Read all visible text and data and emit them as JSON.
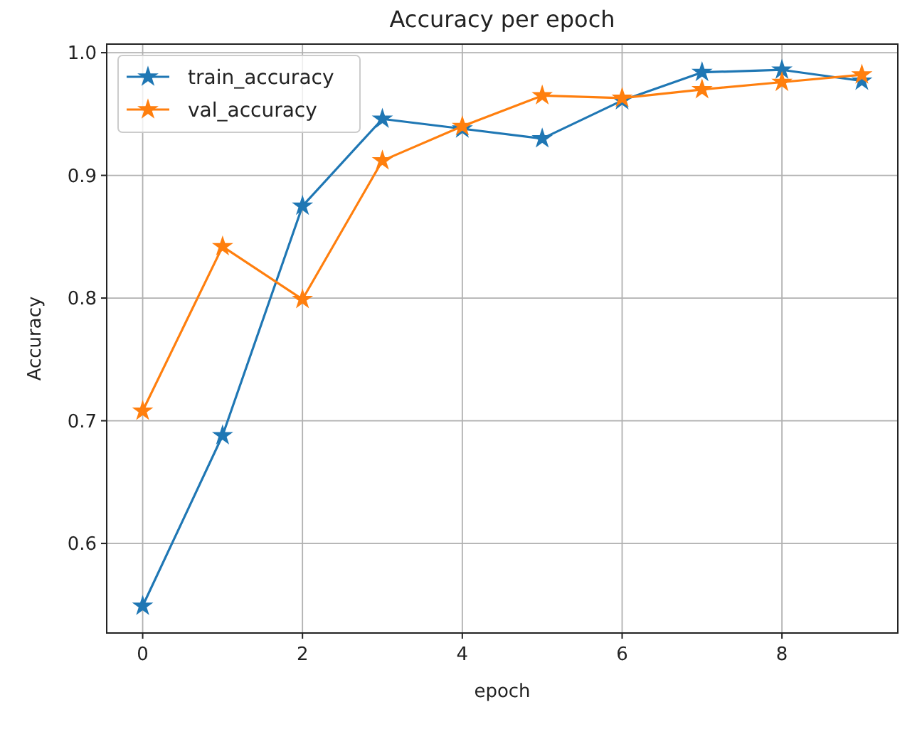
{
  "chart_data": {
    "type": "line",
    "title": "Accuracy per epoch",
    "xlabel": "epoch",
    "ylabel": "Accuracy",
    "x": [
      0,
      1,
      2,
      3,
      4,
      5,
      6,
      7,
      8,
      9
    ],
    "series": [
      {
        "name": "train_accuracy",
        "color": "#1f77b4",
        "values": [
          0.549,
          0.688,
          0.875,
          0.946,
          0.938,
          0.93,
          0.961,
          0.984,
          0.986,
          0.977
        ]
      },
      {
        "name": "val_accuracy",
        "color": "#ff7f0e",
        "values": [
          0.708,
          0.842,
          0.799,
          0.912,
          0.94,
          0.965,
          0.963,
          0.97,
          0.976,
          0.982
        ]
      }
    ],
    "xlim": [
      -0.45,
      9.45
    ],
    "ylim": [
      0.527,
      1.007
    ],
    "xticks": [
      0,
      2,
      4,
      6,
      8
    ],
    "yticks": [
      0.6,
      0.7,
      0.8,
      0.9,
      {
        "value": 1.0,
        "label": "1.0"
      }
    ],
    "grid": true,
    "legend": "top left",
    "marker": "star",
    "line_style": "solid"
  }
}
